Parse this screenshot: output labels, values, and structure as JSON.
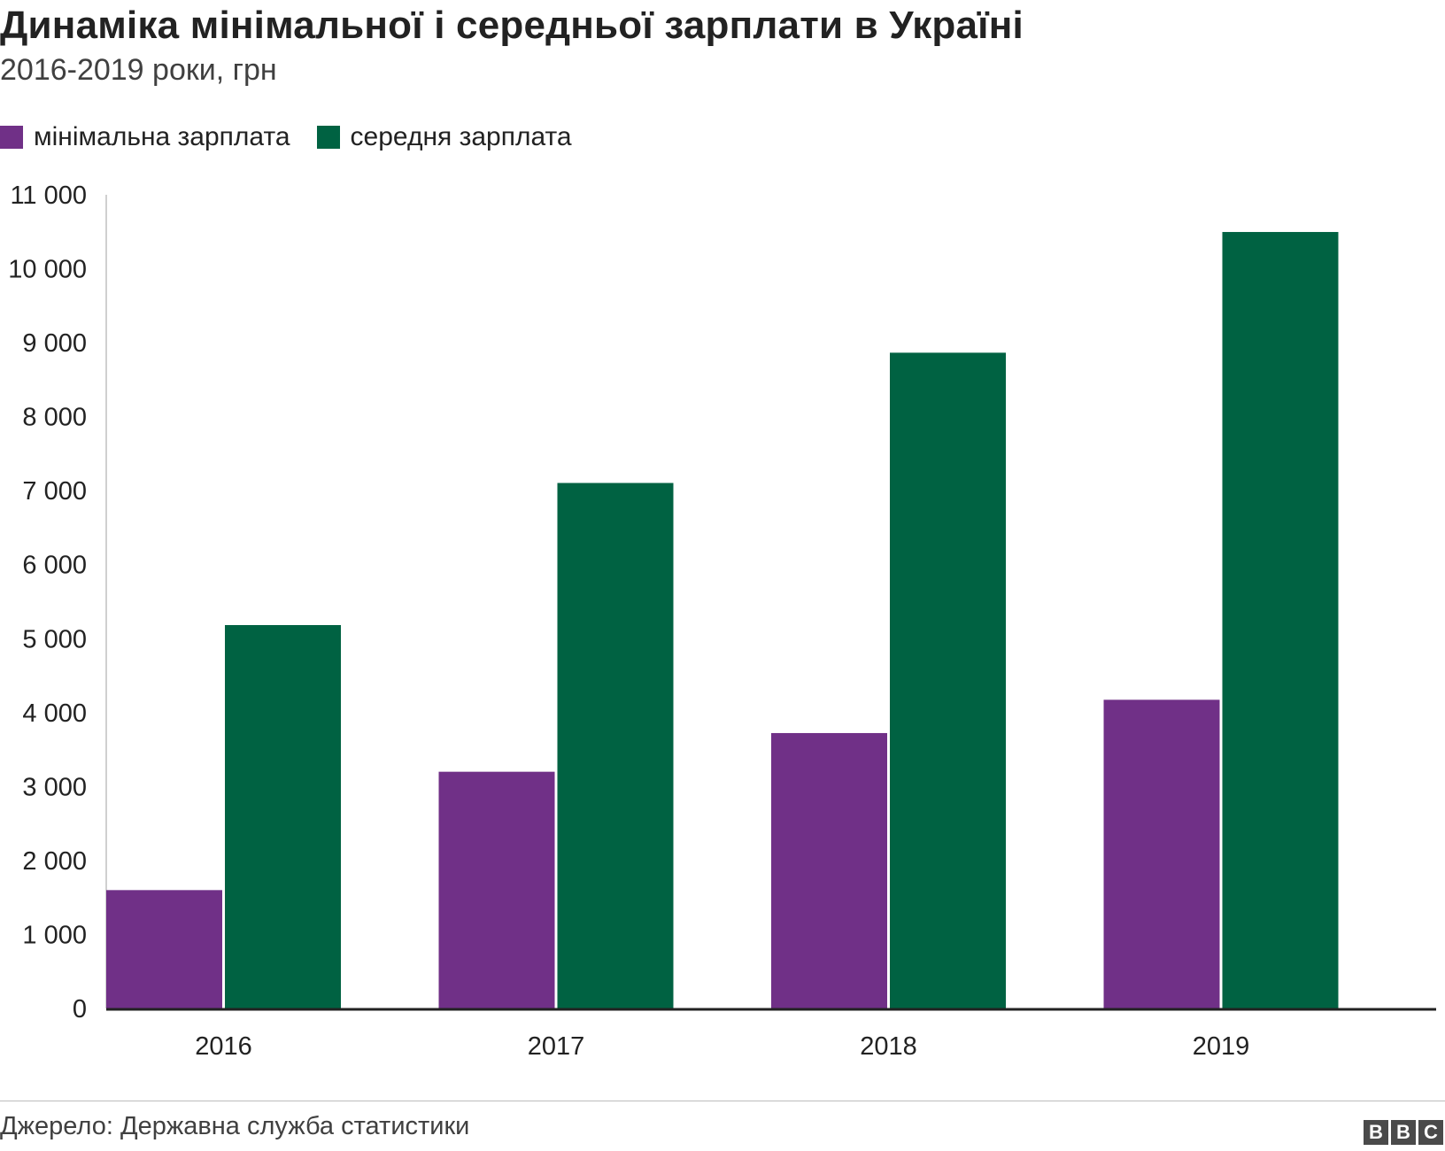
{
  "title": "Динаміка мінімальної і середньої зарплати в Україні",
  "subtitle": "2016-2019 роки, грн",
  "legend": [
    {
      "label": "мінімальна зарплата",
      "color": "#703087"
    },
    {
      "label": "середня зарплата",
      "color": "#006242"
    }
  ],
  "source": "Джерело: Державна служба статистики",
  "logo": {
    "letters": [
      "B",
      "B",
      "C"
    ]
  },
  "chart_data": {
    "type": "bar",
    "categories": [
      "2016",
      "2017",
      "2018",
      "2019"
    ],
    "series": [
      {
        "name": "мінімальна зарплата",
        "color": "#703087",
        "values": [
          1600,
          3200,
          3723,
          4173
        ]
      },
      {
        "name": "середня зарплата",
        "color": "#006242",
        "values": [
          5183,
          7104,
          8865,
          10497
        ]
      }
    ],
    "ylim": [
      0,
      11000
    ],
    "yticks": [
      0,
      1000,
      2000,
      3000,
      4000,
      5000,
      6000,
      7000,
      8000,
      9000,
      10000,
      11000
    ],
    "ytick_labels": [
      "0",
      "1 000",
      "2 000",
      "3 000",
      "4 000",
      "5 000",
      "6 000",
      "7 000",
      "8 000",
      "9 000",
      "10 000",
      "11 000"
    ],
    "grid": false,
    "legend_position": "top-left"
  }
}
